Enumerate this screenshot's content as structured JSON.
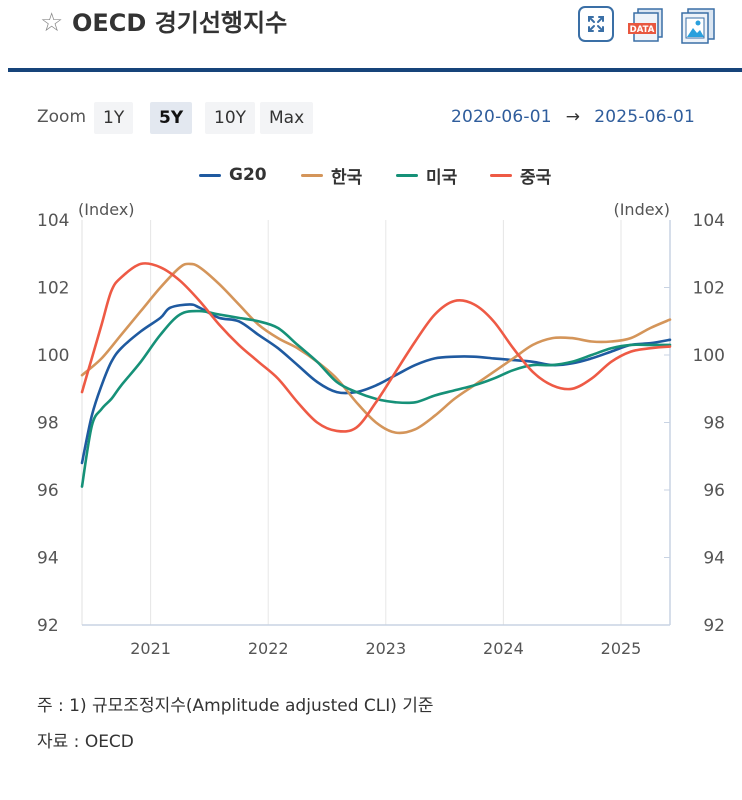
{
  "header": {
    "title": "OECD 경기선행지수",
    "star_icon": "star-outline-icon",
    "buttons": [
      {
        "name": "fullscreen",
        "icon": "expand-icon"
      },
      {
        "name": "data-download",
        "icon": "data-file-icon",
        "label": "DATA"
      },
      {
        "name": "image-download",
        "icon": "image-file-icon"
      }
    ]
  },
  "toolbar": {
    "zoom_label": "Zoom",
    "zoom_options": [
      "1Y",
      "5Y",
      "10Y",
      "Max"
    ],
    "zoom_selected": "5Y",
    "range_start": "2020-06-01",
    "range_arrow": "→",
    "range_end": "2025-06-01"
  },
  "colors": {
    "accent": "#16447a",
    "G20": "#1f5aa0",
    "korea": "#d4955a",
    "usa": "#169178",
    "china": "#ee5a45"
  },
  "chart_data": {
    "type": "line",
    "ylabel_left": "(Index)",
    "ylabel_right": "(Index)",
    "ylim": [
      92,
      104
    ],
    "yticks": [
      92,
      94,
      96,
      98,
      100,
      102,
      104
    ],
    "xticks": [
      "2021",
      "2022",
      "2023",
      "2024",
      "2025"
    ],
    "xlim": [
      "2020-06",
      "2025-06"
    ],
    "legend_position": "top-center",
    "grid": "vertical",
    "series": [
      {
        "name": "G20",
        "color": "#1f5aa0",
        "points": [
          [
            "2020-06",
            96.8
          ],
          [
            "2020-07",
            98.2
          ],
          [
            "2020-08",
            99.1
          ],
          [
            "2020-09",
            99.8
          ],
          [
            "2020-10",
            100.2
          ],
          [
            "2020-12",
            100.7
          ],
          [
            "2021-02",
            101.1
          ],
          [
            "2021-03",
            101.4
          ],
          [
            "2021-05",
            101.5
          ],
          [
            "2021-06",
            101.4
          ],
          [
            "2021-08",
            101.1
          ],
          [
            "2021-10",
            101.0
          ],
          [
            "2021-12",
            100.6
          ],
          [
            "2022-02",
            100.2
          ],
          [
            "2022-04",
            99.7
          ],
          [
            "2022-06",
            99.2
          ],
          [
            "2022-08",
            98.9
          ],
          [
            "2022-10",
            98.9
          ],
          [
            "2022-12",
            99.1
          ],
          [
            "2023-02",
            99.4
          ],
          [
            "2023-04",
            99.7
          ],
          [
            "2023-06",
            99.9
          ],
          [
            "2023-08",
            99.95
          ],
          [
            "2023-10",
            99.95
          ],
          [
            "2023-12",
            99.9
          ],
          [
            "2024-02",
            99.85
          ],
          [
            "2024-04",
            99.8
          ],
          [
            "2024-06",
            99.7
          ],
          [
            "2024-08",
            99.75
          ],
          [
            "2024-10",
            99.9
          ],
          [
            "2024-12",
            100.1
          ],
          [
            "2025-02",
            100.3
          ],
          [
            "2025-04",
            100.35
          ],
          [
            "2025-06",
            100.45
          ]
        ]
      },
      {
        "name": "한국",
        "color": "#d4955a",
        "points": [
          [
            "2020-06",
            99.4
          ],
          [
            "2020-08",
            99.9
          ],
          [
            "2020-10",
            100.6
          ],
          [
            "2020-12",
            101.3
          ],
          [
            "2021-02",
            102.0
          ],
          [
            "2021-04",
            102.6
          ],
          [
            "2021-05",
            102.7
          ],
          [
            "2021-06",
            102.6
          ],
          [
            "2021-08",
            102.1
          ],
          [
            "2021-10",
            101.5
          ],
          [
            "2021-12",
            100.9
          ],
          [
            "2022-02",
            100.5
          ],
          [
            "2022-04",
            100.2
          ],
          [
            "2022-06",
            99.8
          ],
          [
            "2022-08",
            99.3
          ],
          [
            "2022-10",
            98.6
          ],
          [
            "2022-12",
            98.0
          ],
          [
            "2023-02",
            97.7
          ],
          [
            "2023-04",
            97.8
          ],
          [
            "2023-06",
            98.2
          ],
          [
            "2023-08",
            98.7
          ],
          [
            "2023-10",
            99.1
          ],
          [
            "2023-12",
            99.5
          ],
          [
            "2024-02",
            99.9
          ],
          [
            "2024-04",
            100.3
          ],
          [
            "2024-06",
            100.5
          ],
          [
            "2024-08",
            100.5
          ],
          [
            "2024-10",
            100.4
          ],
          [
            "2024-12",
            100.4
          ],
          [
            "2025-02",
            100.5
          ],
          [
            "2025-04",
            100.8
          ],
          [
            "2025-06",
            101.05
          ]
        ]
      },
      {
        "name": "미국",
        "color": "#169178",
        "points": [
          [
            "2020-06",
            96.1
          ],
          [
            "2020-07",
            97.9
          ],
          [
            "2020-08",
            98.4
          ],
          [
            "2020-09",
            98.7
          ],
          [
            "2020-10",
            99.1
          ],
          [
            "2020-12",
            99.8
          ],
          [
            "2021-02",
            100.6
          ],
          [
            "2021-04",
            101.2
          ],
          [
            "2021-06",
            101.3
          ],
          [
            "2021-08",
            101.2
          ],
          [
            "2021-10",
            101.1
          ],
          [
            "2021-12",
            101.0
          ],
          [
            "2022-02",
            100.8
          ],
          [
            "2022-04",
            100.3
          ],
          [
            "2022-06",
            99.8
          ],
          [
            "2022-08",
            99.2
          ],
          [
            "2022-10",
            98.9
          ],
          [
            "2022-12",
            98.7
          ],
          [
            "2023-02",
            98.6
          ],
          [
            "2023-04",
            98.6
          ],
          [
            "2023-06",
            98.8
          ],
          [
            "2023-08",
            98.95
          ],
          [
            "2023-10",
            99.1
          ],
          [
            "2023-12",
            99.3
          ],
          [
            "2024-02",
            99.55
          ],
          [
            "2024-04",
            99.7
          ],
          [
            "2024-06",
            99.7
          ],
          [
            "2024-08",
            99.8
          ],
          [
            "2024-10",
            100.0
          ],
          [
            "2024-12",
            100.2
          ],
          [
            "2025-02",
            100.3
          ],
          [
            "2025-04",
            100.3
          ],
          [
            "2025-06",
            100.3
          ]
        ]
      },
      {
        "name": "중국",
        "color": "#ee5a45",
        "points": [
          [
            "2020-06",
            98.9
          ],
          [
            "2020-07",
            99.9
          ],
          [
            "2020-08",
            100.9
          ],
          [
            "2020-09",
            101.9
          ],
          [
            "2020-10",
            102.3
          ],
          [
            "2020-12",
            102.7
          ],
          [
            "2021-02",
            102.6
          ],
          [
            "2021-04",
            102.2
          ],
          [
            "2021-06",
            101.6
          ],
          [
            "2021-08",
            100.9
          ],
          [
            "2021-10",
            100.3
          ],
          [
            "2021-12",
            99.8
          ],
          [
            "2022-02",
            99.3
          ],
          [
            "2022-04",
            98.6
          ],
          [
            "2022-06",
            98.0
          ],
          [
            "2022-08",
            97.75
          ],
          [
            "2022-10",
            97.85
          ],
          [
            "2022-12",
            98.6
          ],
          [
            "2023-02",
            99.5
          ],
          [
            "2023-04",
            100.4
          ],
          [
            "2023-06",
            101.2
          ],
          [
            "2023-08",
            101.6
          ],
          [
            "2023-10",
            101.5
          ],
          [
            "2023-12",
            101.0
          ],
          [
            "2024-02",
            100.2
          ],
          [
            "2024-04",
            99.5
          ],
          [
            "2024-06",
            99.1
          ],
          [
            "2024-08",
            99.0
          ],
          [
            "2024-10",
            99.3
          ],
          [
            "2024-12",
            99.8
          ],
          [
            "2025-02",
            100.1
          ],
          [
            "2025-04",
            100.2
          ],
          [
            "2025-06",
            100.25
          ]
        ]
      }
    ]
  },
  "footnotes": {
    "note": "주 : 1)  규모조정지수(Amplitude adjusted CLI) 기준",
    "source": "자료 :  OECD"
  }
}
